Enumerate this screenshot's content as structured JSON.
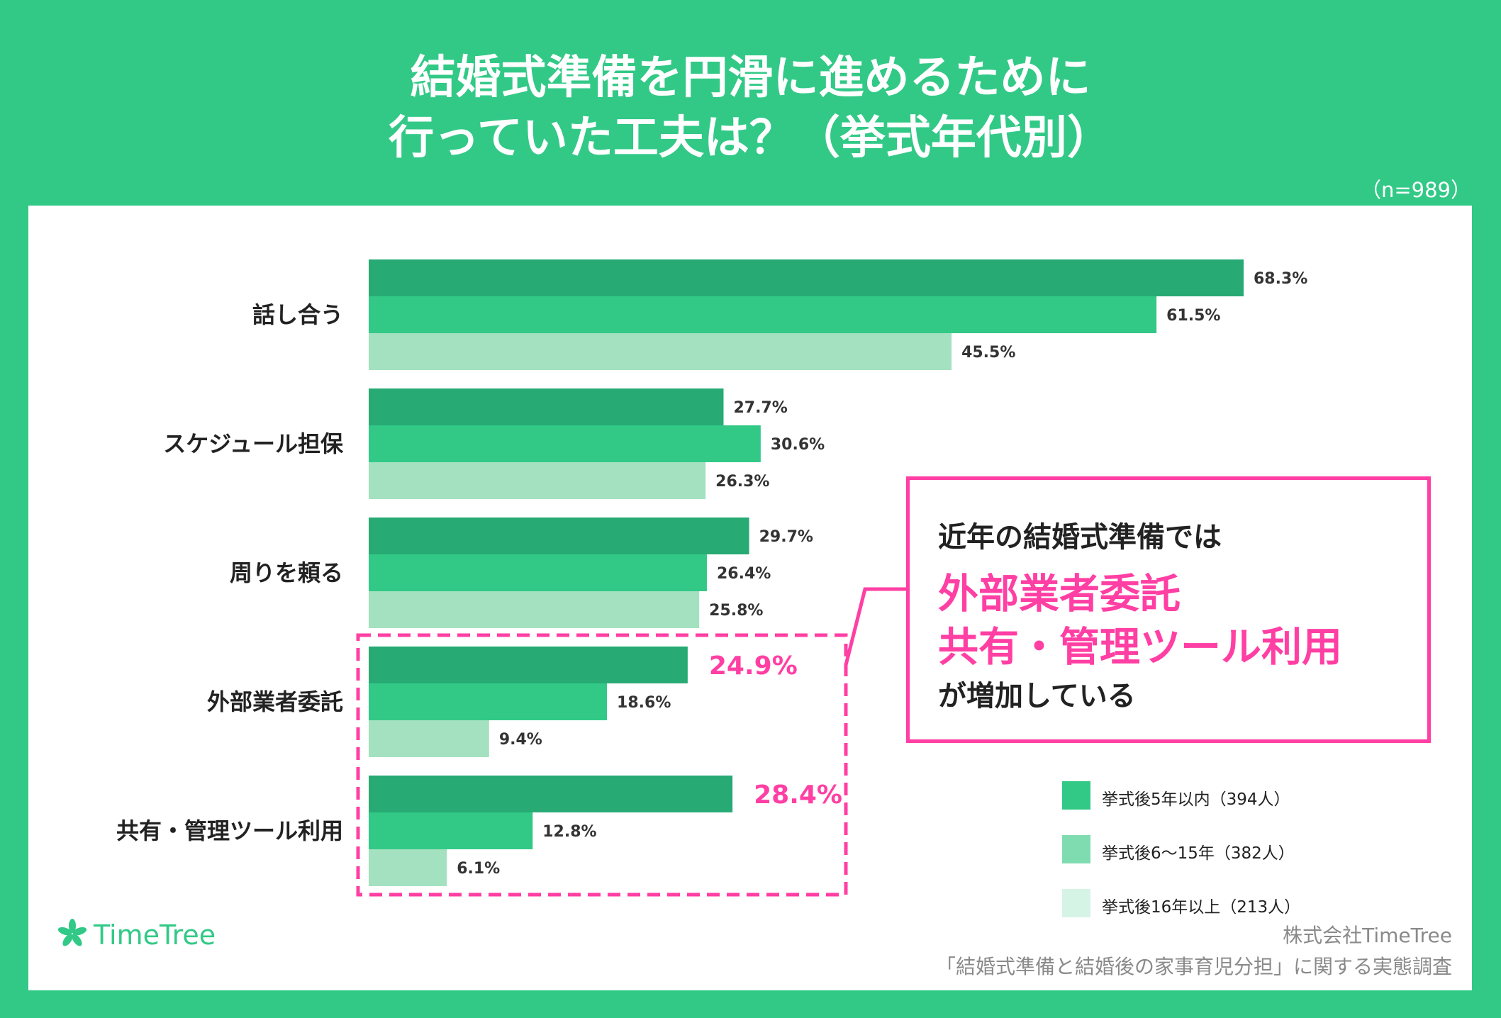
{
  "title": {
    "line1": "結婚式準備を円滑に進めるために",
    "line2": "行っていた工夫は？（挙式年代別）"
  },
  "sample_size": "（n=989）",
  "colors": {
    "background": "#32c987",
    "series_1": "#27aa74",
    "series_2": "#32c987",
    "series_3": "#a4e1c0",
    "highlight": "#ff3fa3",
    "legend_1": "#32c987",
    "legend_2": "#7fdcb1",
    "legend_3": "#d6f4e6"
  },
  "chart_data": {
    "type": "bar",
    "orientation": "horizontal",
    "categories": [
      "話し合う",
      "スケジュール担保",
      "周りを頼る",
      "外部業者委託",
      "共有・管理ツール利用"
    ],
    "series": [
      {
        "name": "挙式後5年以内（394人）",
        "values": [
          68.3,
          27.7,
          29.7,
          24.9,
          28.4
        ]
      },
      {
        "name": "挙式後6〜15年（382人）",
        "values": [
          61.5,
          30.6,
          26.4,
          18.6,
          12.8
        ]
      },
      {
        "name": "挙式後16年以上（213人）",
        "values": [
          45.5,
          26.3,
          25.8,
          9.4,
          6.1
        ]
      }
    ],
    "value_labels": [
      [
        "68.3%",
        "61.5%",
        "45.5%"
      ],
      [
        "27.7%",
        "30.6%",
        "26.3%"
      ],
      [
        "29.7%",
        "26.4%",
        "25.8%"
      ],
      [
        "24.9%",
        "18.6%",
        "9.4%"
      ],
      [
        "28.4%",
        "12.8%",
        "6.1%"
      ]
    ],
    "highlighted_categories": [
      "外部業者委託",
      "共有・管理ツール利用"
    ],
    "unit": "%",
    "xlim": [
      0,
      100
    ],
    "grid": false,
    "legend_position": "bottom-right"
  },
  "callout": {
    "intro": "近年の結婚式準備では",
    "highlight_1": "外部業者委託",
    "highlight_2": "共有・管理ツール利用",
    "outro": "が増加している"
  },
  "legend": {
    "items": [
      "挙式後5年以内（394人）",
      "挙式後6〜15年（382人）",
      "挙式後16年以上（213人）"
    ]
  },
  "logo": {
    "icon": "timetree-leaf-icon",
    "text": "TimeTree"
  },
  "credit": {
    "company": "株式会社TimeTree",
    "survey": "「結婚式準備と結婚後の家事育児分担」に関する実態調査"
  }
}
